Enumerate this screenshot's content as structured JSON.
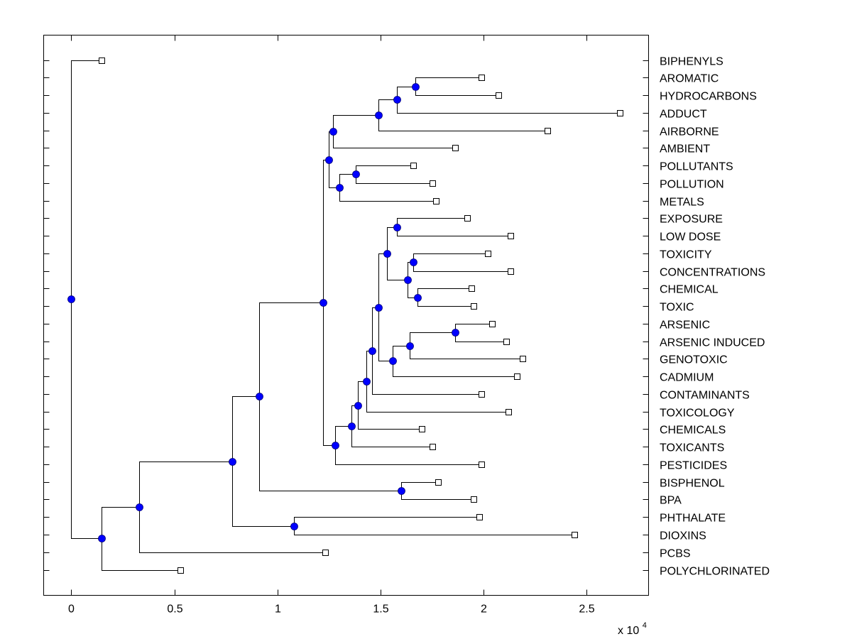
{
  "chart_data": {
    "type": "dendrogram",
    "title": "",
    "xlabel": "",
    "ylabel": "",
    "x_multiplier_label": {
      "base": "x 10",
      "exponent": "4"
    },
    "xlim": [
      -0.134,
      2.8
    ],
    "xticks": [
      0,
      0.5,
      1,
      1.5,
      2,
      2.5
    ],
    "xtick_labels": [
      "0",
      "0.5",
      "1",
      "1.5",
      "2",
      "2.5"
    ],
    "grid": false,
    "colors": {
      "node": "#0000ff",
      "leaf_fill": "#ffffff",
      "line": "#000000"
    },
    "leaves": [
      {
        "label": "BIPHENYLS",
        "x": 0.145
      },
      {
        "label": "AROMATIC",
        "x": 1.99
      },
      {
        "label": "HYDROCARBONS",
        "x": 2.07
      },
      {
        "label": "ADDUCT",
        "x": 2.66
      },
      {
        "label": "AIRBORNE",
        "x": 2.31
      },
      {
        "label": "AMBIENT",
        "x": 1.86
      },
      {
        "label": "POLLUTANTS",
        "x": 1.66
      },
      {
        "label": "POLLUTION",
        "x": 1.75
      },
      {
        "label": "METALS",
        "x": 1.77
      },
      {
        "label": "EXPOSURE",
        "x": 1.92
      },
      {
        "label": "LOW DOSE",
        "x": 2.13
      },
      {
        "label": "TOXICITY",
        "x": 2.02
      },
      {
        "label": "CONCENTRATIONS",
        "x": 2.13
      },
      {
        "label": "CHEMICAL",
        "x": 1.94
      },
      {
        "label": "TOXIC",
        "x": 1.95
      },
      {
        "label": "ARSENIC",
        "x": 2.04
      },
      {
        "label": "ARSENIC INDUCED",
        "x": 2.11
      },
      {
        "label": "GENOTOXIC",
        "x": 2.19
      },
      {
        "label": "CADMIUM",
        "x": 2.16
      },
      {
        "label": "CONTAMINANTS",
        "x": 1.99
      },
      {
        "label": "TOXICOLOGY",
        "x": 2.12
      },
      {
        "label": "CHEMICALS",
        "x": 1.7
      },
      {
        "label": "TOXICANTS",
        "x": 1.75
      },
      {
        "label": "PESTICIDES",
        "x": 1.99
      },
      {
        "label": "BISPHENOL",
        "x": 1.78
      },
      {
        "label": "BPA",
        "x": 1.95
      },
      {
        "label": "PHTHALATE",
        "x": 1.98
      },
      {
        "label": "DIOXINS",
        "x": 2.44
      },
      {
        "label": "PCBS",
        "x": 1.23
      },
      {
        "label": "POLYCHLORINATED",
        "x": 0.53
      }
    ],
    "nodes": [
      {
        "id": "n1",
        "x": 1.67,
        "children": [
          "L:AROMATIC",
          "L:HYDROCARBONS"
        ]
      },
      {
        "id": "n2",
        "x": 1.58,
        "children": [
          "N:n1",
          "L:ADDUCT"
        ]
      },
      {
        "id": "n3",
        "x": 1.49,
        "children": [
          "N:n2",
          "L:AIRBORNE"
        ]
      },
      {
        "id": "n4",
        "x": 1.27,
        "children": [
          "N:n3",
          "L:AMBIENT"
        ]
      },
      {
        "id": "n5",
        "x": 1.38,
        "children": [
          "L:POLLUTANTS",
          "L:POLLUTION"
        ]
      },
      {
        "id": "n6",
        "x": 1.3,
        "children": [
          "N:n5",
          "L:METALS"
        ]
      },
      {
        "id": "n7",
        "x": 1.25,
        "children": [
          "N:n4",
          "N:n6"
        ]
      },
      {
        "id": "n8",
        "x": 1.58,
        "children": [
          "L:EXPOSURE",
          "L:LOW DOSE"
        ]
      },
      {
        "id": "n9",
        "x": 1.66,
        "children": [
          "L:TOXICITY",
          "L:CONCENTRATIONS"
        ]
      },
      {
        "id": "n10",
        "x": 1.68,
        "children": [
          "L:CHEMICAL",
          "L:TOXIC"
        ]
      },
      {
        "id": "n11",
        "x": 1.63,
        "children": [
          "N:n9",
          "N:n10"
        ]
      },
      {
        "id": "n12",
        "x": 1.53,
        "children": [
          "N:n8",
          "N:n11"
        ]
      },
      {
        "id": "n13",
        "x": 1.86,
        "children": [
          "L:ARSENIC",
          "L:ARSENIC INDUCED"
        ]
      },
      {
        "id": "n14",
        "x": 1.64,
        "children": [
          "N:n13",
          "L:GENOTOXIC"
        ]
      },
      {
        "id": "n15",
        "x": 1.56,
        "children": [
          "N:n14",
          "L:CADMIUM"
        ]
      },
      {
        "id": "n16",
        "x": 1.49,
        "children": [
          "N:n12",
          "N:n15"
        ]
      },
      {
        "id": "n17",
        "x": 1.46,
        "children": [
          "N:n16",
          "L:CONTAMINANTS"
        ]
      },
      {
        "id": "n18",
        "x": 1.43,
        "children": [
          "N:n17",
          "L:TOXICOLOGY"
        ]
      },
      {
        "id": "n19",
        "x": 1.39,
        "children": [
          "N:n18",
          "L:CHEMICALS"
        ]
      },
      {
        "id": "n20",
        "x": 1.36,
        "children": [
          "N:n19",
          "L:TOXICANTS"
        ]
      },
      {
        "id": "n21",
        "x": 1.28,
        "children": [
          "N:n20",
          "L:PESTICIDES"
        ]
      },
      {
        "id": "n22",
        "x": 1.22,
        "children": [
          "N:n7",
          "N:n21"
        ]
      },
      {
        "id": "n23",
        "x": 1.6,
        "children": [
          "L:BISPHENOL",
          "L:BPA"
        ]
      },
      {
        "id": "n24",
        "x": 0.91,
        "children": [
          "N:n22",
          "N:n23"
        ]
      },
      {
        "id": "n25",
        "x": 1.08,
        "children": [
          "L:PHTHALATE",
          "L:DIOXINS"
        ]
      },
      {
        "id": "n26",
        "x": 0.78,
        "children": [
          "N:n24",
          "N:n25"
        ]
      },
      {
        "id": "n27",
        "x": 0.33,
        "children": [
          "N:n26",
          "L:PCBS"
        ]
      },
      {
        "id": "n28",
        "x": 0.145,
        "children": [
          "N:n27",
          "L:POLYCHLORINATED"
        ]
      },
      {
        "id": "root",
        "x": 0.0,
        "children": [
          "L:BIPHENYLS",
          "N:n28"
        ]
      }
    ]
  }
}
